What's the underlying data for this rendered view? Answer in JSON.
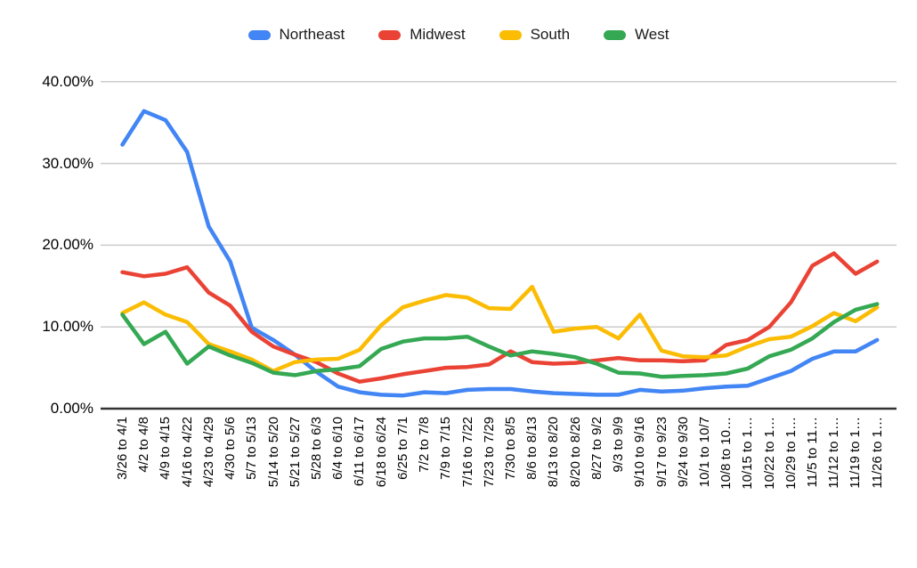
{
  "chart_data": {
    "type": "line",
    "title": "",
    "legend_position": "top",
    "grid": true,
    "y_axis": {
      "min": 0,
      "max": 40,
      "format": "percent",
      "ticks": [
        {
          "value": 0,
          "label": "0.00%"
        },
        {
          "value": 10,
          "label": "10.00%"
        },
        {
          "value": 20,
          "label": "20.00%"
        },
        {
          "value": 30,
          "label": "30.00%"
        },
        {
          "value": 40,
          "label": "40.00%"
        }
      ]
    },
    "categories": [
      "3/26 to 4/1",
      "4/2 to 4/8",
      "4/9 to 4/15",
      "4/16 to 4/22",
      "4/23 to 4/29",
      "4/30 to 5/6",
      "5/7 to 5/13",
      "5/14 to 5/20",
      "5/21 to 5/27",
      "5/28 to 6/3",
      "6/4 to 6/10",
      "6/11 to 6/17",
      "6/18 to 6/24",
      "6/25 to 7/1",
      "7/2 to 7/8",
      "7/9 to 7/15",
      "7/16 to 7/22",
      "7/23 to 7/29",
      "7/30 to 8/5",
      "8/6 to 8/13",
      "8/13 to 8/20",
      "8/20 to 8/26",
      "8/27 to 9/2",
      "9/3 to 9/9",
      "9/10 to 9/16",
      "9/17 to 9/23",
      "9/24 to 9/30",
      "10/1 to 10/7",
      "10/8 to 10…",
      "10/15 to 1…",
      "10/22 to 1…",
      "10/29 to 1…",
      "11/5 to 11…",
      "11/12 to 1…",
      "11/19 to 1…",
      "11/26 to 1…"
    ],
    "series": [
      {
        "name": "Northeast",
        "color": "#4285f4",
        "values": [
          32.3,
          36.4,
          35.3,
          31.4,
          22.3,
          18.0,
          9.9,
          8.4,
          6.6,
          4.5,
          2.7,
          2.0,
          1.7,
          1.6,
          2.0,
          1.9,
          2.3,
          2.4,
          2.4,
          2.1,
          1.9,
          1.8,
          1.7,
          1.7,
          2.3,
          2.1,
          2.2,
          2.5,
          2.7,
          2.8,
          3.7,
          4.6,
          6.1,
          7.0,
          7.0,
          8.4
        ]
      },
      {
        "name": "Midwest",
        "color": "#ea4335",
        "values": [
          16.7,
          16.2,
          16.5,
          17.3,
          14.2,
          12.6,
          9.4,
          7.6,
          6.6,
          5.7,
          4.3,
          3.3,
          3.7,
          4.2,
          4.6,
          5.0,
          5.1,
          5.4,
          7.0,
          5.7,
          5.5,
          5.6,
          5.9,
          6.2,
          5.9,
          5.9,
          5.8,
          5.9,
          7.8,
          8.4,
          10.0,
          13.0,
          17.5,
          19.0,
          16.5,
          18.0
        ]
      },
      {
        "name": "South",
        "color": "#fbbc04",
        "values": [
          11.7,
          13.0,
          11.5,
          10.6,
          7.9,
          7.0,
          6.0,
          4.6,
          5.7,
          6.0,
          6.1,
          7.2,
          10.2,
          12.4,
          13.2,
          13.9,
          13.6,
          12.3,
          12.2,
          14.9,
          9.4,
          9.8,
          10.0,
          8.6,
          11.5,
          7.1,
          6.4,
          6.3,
          6.5,
          7.6,
          8.5,
          8.8,
          10.1,
          11.7,
          10.7,
          12.4
        ]
      },
      {
        "name": "West",
        "color": "#34a853",
        "values": [
          11.5,
          7.9,
          9.4,
          5.5,
          7.6,
          6.5,
          5.6,
          4.4,
          4.1,
          4.6,
          4.8,
          5.2,
          7.3,
          8.2,
          8.6,
          8.6,
          8.8,
          7.6,
          6.5,
          7.0,
          6.7,
          6.3,
          5.5,
          4.4,
          4.3,
          3.9,
          4.0,
          4.1,
          4.3,
          4.9,
          6.4,
          7.2,
          8.6,
          10.6,
          12.1,
          12.8
        ]
      }
    ]
  },
  "colors": {
    "background": "#ffffff",
    "gridline": "#cccccc",
    "axis_line": "#333333",
    "text": "#000000"
  }
}
